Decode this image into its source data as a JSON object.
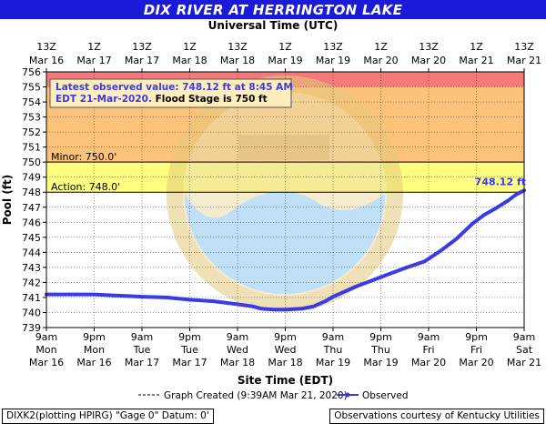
{
  "header": {
    "title": "DIX RIVER AT HERRINGTON LAKE",
    "top_axis_title": "Universal Time (UTC)"
  },
  "footer": {
    "plotting_info": "DIXK2(plotting HPIRG) \"Gage 0\" Datum: 0'",
    "courtesy": "Observations courtesy of Kentucky Utilities"
  },
  "colors": {
    "title_bar": "#1a1ad8",
    "major_band": "#f47a7a",
    "flood_band": "#fcc27a",
    "action_band": "#ffff80",
    "series": "#3a3ae6"
  },
  "chart_data": {
    "type": "line",
    "ylabel": "Pool (ft)",
    "xlabel": "Site Time (EDT)",
    "ylim": [
      739,
      756
    ],
    "yticks": [
      739,
      740,
      741,
      742,
      743,
      744,
      745,
      746,
      747,
      748,
      749,
      750,
      751,
      752,
      753,
      754,
      755,
      756
    ],
    "top_ticks": [
      {
        "hour": "13Z",
        "date": "Mar 16"
      },
      {
        "hour": "1Z",
        "date": "Mar 17"
      },
      {
        "hour": "13Z",
        "date": "Mar 17"
      },
      {
        "hour": "1Z",
        "date": "Mar 18"
      },
      {
        "hour": "13Z",
        "date": "Mar 18"
      },
      {
        "hour": "1Z",
        "date": "Mar 19"
      },
      {
        "hour": "13Z",
        "date": "Mar 19"
      },
      {
        "hour": "1Z",
        "date": "Mar 20"
      },
      {
        "hour": "13Z",
        "date": "Mar 20"
      },
      {
        "hour": "1Z",
        "date": "Mar 21"
      },
      {
        "hour": "13Z",
        "date": "Mar 21"
      }
    ],
    "bottom_ticks": [
      {
        "time": "9am",
        "day": "Mon",
        "date": "Mar 16"
      },
      {
        "time": "9pm",
        "day": "Mon",
        "date": "Mar 16"
      },
      {
        "time": "9am",
        "day": "Tue",
        "date": "Mar 17"
      },
      {
        "time": "9pm",
        "day": "Tue",
        "date": "Mar 17"
      },
      {
        "time": "9am",
        "day": "Wed",
        "date": "Mar 18"
      },
      {
        "time": "9pm",
        "day": "Wed",
        "date": "Mar 18"
      },
      {
        "time": "9am",
        "day": "Thu",
        "date": "Mar 19"
      },
      {
        "time": "9pm",
        "day": "Thu",
        "date": "Mar 19"
      },
      {
        "time": "9am",
        "day": "Fri",
        "date": "Mar 20"
      },
      {
        "time": "9pm",
        "day": "Fri",
        "date": "Mar 20"
      },
      {
        "time": "9am",
        "day": "Sat",
        "date": "Mar 21"
      }
    ],
    "x_domain_hours": [
      0,
      120
    ],
    "bands": [
      {
        "name": "major",
        "from": 755,
        "to": 756
      },
      {
        "name": "flood",
        "from": 750,
        "to": 755
      },
      {
        "name": "action",
        "from": 748,
        "to": 750
      }
    ],
    "thresholds": [
      {
        "label": "Minor: 750.0'",
        "value": 750
      },
      {
        "label": "Action: 748.0'",
        "value": 748
      }
    ],
    "annotation": {
      "line1": "Latest observed value: 748.12 ft at 8:45 AM",
      "line2_date": "EDT 21-Mar-2020.",
      "line2_stage": "Flood Stage is 750 ft"
    },
    "latest_label": "748.12 ft",
    "series": [
      {
        "name": "Observed",
        "points": [
          [
            0,
            741.2
          ],
          [
            6,
            741.2
          ],
          [
            12,
            741.2
          ],
          [
            16,
            741.15
          ],
          [
            20,
            741.1
          ],
          [
            24,
            741.05
          ],
          [
            30,
            741.0
          ],
          [
            36,
            740.85
          ],
          [
            42,
            740.75
          ],
          [
            48,
            740.55
          ],
          [
            52,
            740.4
          ],
          [
            54,
            740.25
          ],
          [
            57,
            740.2
          ],
          [
            60,
            740.2
          ],
          [
            64,
            740.25
          ],
          [
            67,
            740.4
          ],
          [
            70,
            740.75
          ],
          [
            72,
            741.05
          ],
          [
            75,
            741.4
          ],
          [
            78,
            741.75
          ],
          [
            82,
            742.15
          ],
          [
            86,
            742.55
          ],
          [
            90,
            742.95
          ],
          [
            95,
            743.4
          ],
          [
            99,
            744.1
          ],
          [
            103,
            744.9
          ],
          [
            107,
            745.9
          ],
          [
            110,
            746.5
          ],
          [
            113,
            746.95
          ],
          [
            116,
            747.45
          ],
          [
            118,
            747.85
          ],
          [
            120,
            748.12
          ]
        ]
      }
    ],
    "legend": {
      "graph_created": "Graph Created (9:39AM Mar 21, 2020)",
      "observed": "Observed"
    }
  }
}
